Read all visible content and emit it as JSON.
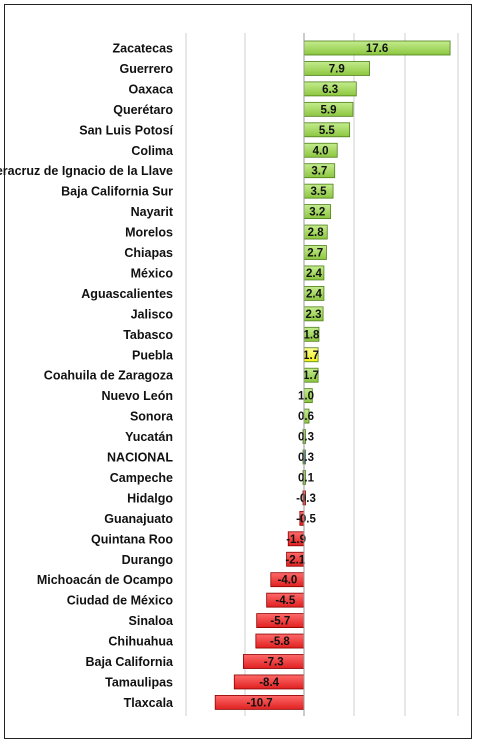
{
  "chart_data": {
    "type": "bar",
    "orientation": "horizontal",
    "categories": [
      "Zacatecas",
      "Guerrero",
      "Oaxaca",
      "Querétaro",
      "San Luis Potosí",
      "Colima",
      "Veracruz de Ignacio de la Llave",
      "Baja California Sur",
      "Nayarit",
      "Morelos",
      "Chiapas",
      "México",
      "Aguascalientes",
      "Jalisco",
      "Tabasco",
      "Puebla",
      "Coahuila de Zaragoza",
      "Nuevo León",
      "Sonora",
      "Yucatán",
      "NACIONAL",
      "Campeche",
      "Hidalgo",
      "Guanajuato",
      "Quintana Roo",
      "Durango",
      "Michoacán de Ocampo",
      "Ciudad de México",
      "Sinaloa",
      "Chihuahua",
      "Baja California",
      "Tamaulipas",
      "Tlaxcala"
    ],
    "values": [
      17.6,
      7.9,
      6.3,
      5.9,
      5.5,
      4.0,
      3.7,
      3.5,
      3.2,
      2.8,
      2.7,
      2.4,
      2.4,
      2.3,
      1.8,
      1.7,
      1.7,
      1.0,
      0.6,
      0.3,
      0.3,
      0.1,
      -0.3,
      -0.5,
      -1.9,
      -2.1,
      -4.0,
      -4.5,
      -5.7,
      -5.8,
      -7.3,
      -8.4,
      -10.7
    ],
    "value_labels": [
      "17.6",
      "7.9",
      "6.3",
      "5.9",
      "5.5",
      "4.0",
      "3.7",
      "3.5",
      "3.2",
      "2.8",
      "2.7",
      "2.4",
      "2.4",
      "2.3",
      "1.8",
      "1.7",
      "1.7",
      "1.0",
      "0.6",
      "0.3",
      "0.3",
      "0.1",
      "-0.3",
      "-0.5",
      "-1.9",
      "-2.1",
      "-4.0",
      "-4.5",
      "-5.7",
      "-5.8",
      "-7.3",
      "-8.4",
      "-10.7"
    ],
    "highlight_category": "Puebla",
    "xlim": [
      -12,
      20
    ],
    "grid": "vertical",
    "colors": {
      "positive": "#8cc63f",
      "negative": "#e02020",
      "highlight": "#f0f020",
      "national": "#1f3a93"
    }
  }
}
